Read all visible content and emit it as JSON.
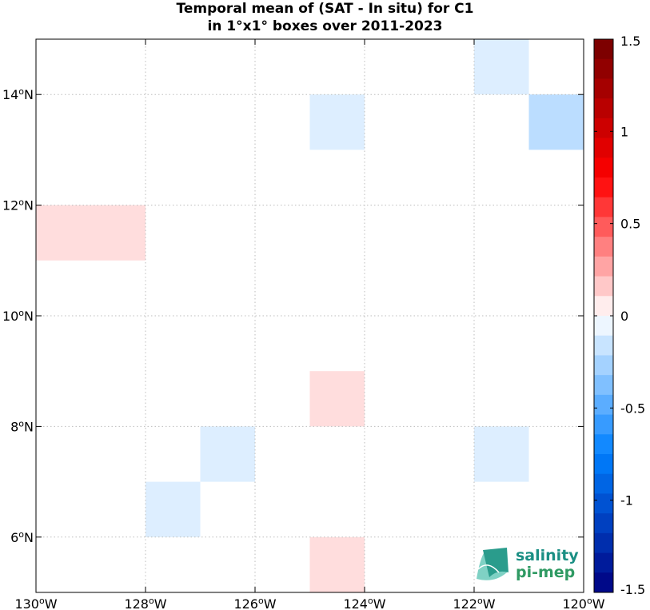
{
  "chart_data": {
    "type": "heatmap",
    "title": "Temporal mean of (SAT - In situ) for C1",
    "subtitle": "in 1°x1° boxes over 2011-2023",
    "xlim": [
      -130,
      -120
    ],
    "ylim": [
      5,
      15
    ],
    "x_ticks": [
      {
        "value": -130,
        "label": "130",
        "hemi": "W"
      },
      {
        "value": -128,
        "label": "128",
        "hemi": "W"
      },
      {
        "value": -126,
        "label": "126",
        "hemi": "W"
      },
      {
        "value": -124,
        "label": "124",
        "hemi": "W"
      },
      {
        "value": -122,
        "label": "122",
        "hemi": "W"
      },
      {
        "value": -120,
        "label": "120",
        "hemi": "W"
      }
    ],
    "y_ticks": [
      {
        "value": 6,
        "label": "6",
        "hemi": "N"
      },
      {
        "value": 8,
        "label": "8",
        "hemi": "N"
      },
      {
        "value": 10,
        "label": "10",
        "hemi": "N"
      },
      {
        "value": 12,
        "label": "12",
        "hemi": "N"
      },
      {
        "value": 14,
        "label": "14",
        "hemi": "N"
      }
    ],
    "grid": true,
    "cells": [
      {
        "lon": -122,
        "lat": 14,
        "value": -0.1
      },
      {
        "lon": -125,
        "lat": 13,
        "value": -0.1
      },
      {
        "lon": -121,
        "lat": 13,
        "value": -0.2
      },
      {
        "lon": -130,
        "lat": 11,
        "value": 0.1
      },
      {
        "lon": -129,
        "lat": 11,
        "value": 0.1
      },
      {
        "lon": -125,
        "lat": 8,
        "value": 0.1
      },
      {
        "lon": -127,
        "lat": 7,
        "value": -0.1
      },
      {
        "lon": -122,
        "lat": 7,
        "value": -0.1
      },
      {
        "lon": -128,
        "lat": 6,
        "value": -0.1
      },
      {
        "lon": -125,
        "lat": 5,
        "value": 0.1
      }
    ],
    "colorbar": {
      "range": [
        -1.5,
        1.5
      ],
      "levels": 28,
      "ticks": [
        {
          "value": 1.5,
          "label": "1.5"
        },
        {
          "value": 1,
          "label": "1"
        },
        {
          "value": 0.5,
          "label": "0.5"
        },
        {
          "value": 0,
          "label": "0"
        },
        {
          "value": -0.5,
          "label": "-0.5"
        },
        {
          "value": -1,
          "label": "-1"
        },
        {
          "value": -1.5,
          "label": "-1.5"
        }
      ]
    }
  },
  "logo": {
    "line1": "salinity",
    "line2": "pi-mep"
  }
}
